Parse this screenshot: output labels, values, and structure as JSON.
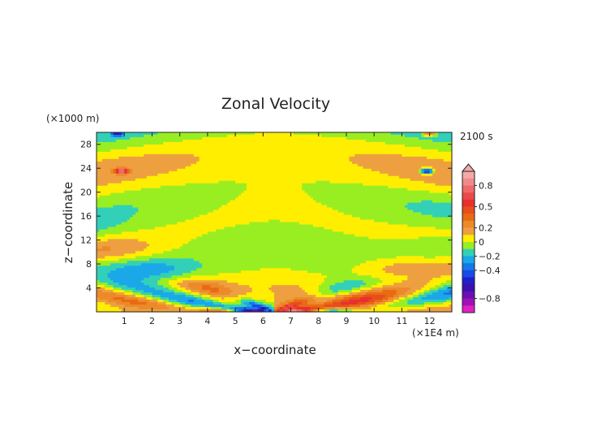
{
  "chart_data": {
    "type": "heatmap",
    "title": "Zonal Velocity",
    "time_label": "2100 s",
    "xlabel": "x−coordinate",
    "ylabel": "z−coordinate",
    "x_unit": "(×1E4 m)",
    "y_unit": "(×1000 m)",
    "xlim": [
      0,
      12.8
    ],
    "ylim": [
      0,
      30
    ],
    "x_ticks": [
      1,
      2,
      3,
      4,
      5,
      6,
      7,
      8,
      9,
      10,
      11,
      12
    ],
    "y_ticks": [
      4,
      8,
      12,
      16,
      20,
      24,
      28
    ],
    "x_tick_labels": [
      "1",
      "2",
      "3",
      "4",
      "5",
      "6",
      "7",
      "8",
      "9",
      "10",
      "11",
      "12"
    ],
    "y_tick_labels": [
      "4",
      "8",
      "12",
      "16",
      "20",
      "24",
      "28"
    ],
    "colorbar": {
      "labels": [
        "0.8",
        "0.5",
        "0.2",
        "0",
        "−0.2",
        "−0.4",
        "−0.8"
      ],
      "label_values": [
        0.8,
        0.5,
        0.2,
        0,
        -0.2,
        -0.4,
        -0.8
      ],
      "levels": [
        1.0,
        0.9,
        0.8,
        0.7,
        0.6,
        0.5,
        0.4,
        0.3,
        0.2,
        0.1,
        0.0,
        -0.1,
        -0.2,
        -0.3,
        -0.4,
        -0.5,
        -0.6,
        -0.7,
        -0.8,
        -0.9,
        -1.0
      ],
      "colors": [
        "#f4a9a9",
        "#f08a8a",
        "#ee6a6a",
        "#ea4a4a",
        "#e83030",
        "#e84e1c",
        "#ea6a14",
        "#ec8a2a",
        "#eea040",
        "#ffee00",
        "#99ee22",
        "#33d0b8",
        "#1aa8e8",
        "#1478e8",
        "#1a4ae8",
        "#2020c8",
        "#3a10b0",
        "#6a10b0",
        "#a010b8",
        "#e020c0"
      ],
      "extend": "max"
    }
  }
}
